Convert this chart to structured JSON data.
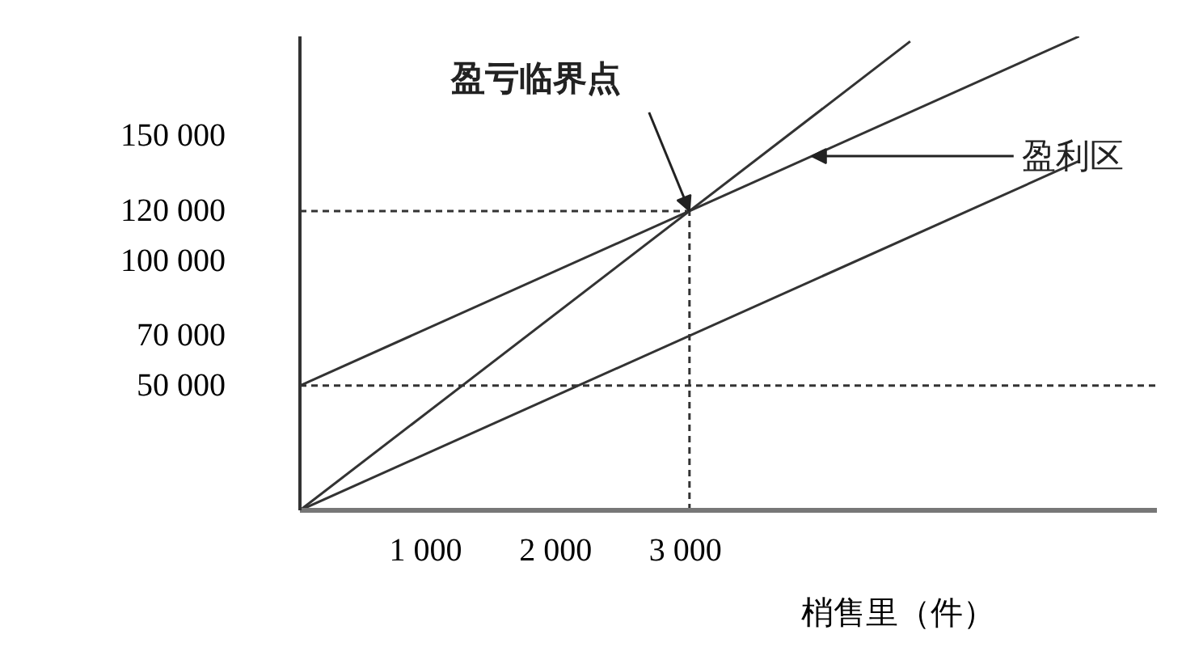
{
  "chart_data": {
    "type": "line",
    "xlabel": "梢售里（件）",
    "xlim": [
      0,
      6600
    ],
    "ylim": [
      0,
      190000
    ],
    "xticks": [
      {
        "value": 1000,
        "label": "1  000"
      },
      {
        "value": 2000,
        "label": "2  000"
      },
      {
        "value": 3000,
        "label": "3  000"
      }
    ],
    "yticks": [
      {
        "value": 50000,
        "label": "50 000"
      },
      {
        "value": 70000,
        "label": "70 000"
      },
      {
        "value": 100000,
        "label": "100 000"
      },
      {
        "value": 120000,
        "label": "120 000"
      },
      {
        "value": 150000,
        "label": "150 000"
      }
    ],
    "series": [
      {
        "color": "#333333",
        "x": [
          0,
          4700
        ],
        "values": [
          0,
          188000
        ]
      },
      {
        "color": "#333333",
        "x": [
          0,
          6000
        ],
        "values": [
          50000,
          190000
        ]
      },
      {
        "color": "#333333",
        "x": [
          0,
          6000
        ],
        "values": [
          0,
          140000
        ]
      },
      {
        "color": "#333333",
        "x": [
          0,
          3000
        ],
        "values": [
          120000,
          120000
        ],
        "line_style": "dashed"
      },
      {
        "color": "#333333",
        "x": [
          3000,
          3000
        ],
        "values": [
          0,
          120000
        ],
        "line_style": "dashed"
      }
    ],
    "ref_lines": [
      {
        "axis": "y",
        "value": 50000,
        "color": "#333333",
        "line_style": "dashed"
      }
    ],
    "annotations": [
      {
        "text": "盈亏临界点",
        "x": 3000,
        "y": 120000
      },
      {
        "text": "盈利区",
        "x": 3940,
        "y": 142000
      }
    ],
    "grid": false,
    "marker": "none",
    "line_style": "solid"
  }
}
